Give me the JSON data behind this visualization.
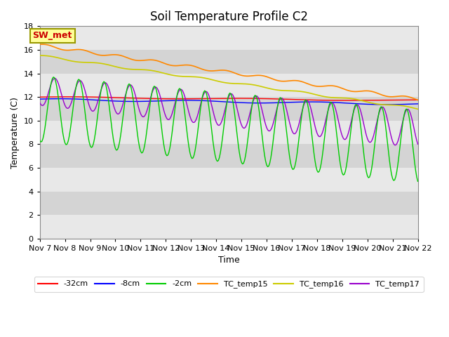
{
  "title": "Soil Temperature Profile C2",
  "xlabel": "Time",
  "ylabel": "Temperature (C)",
  "ylim": [
    0,
    18
  ],
  "n_days": 15,
  "x_tick_labels": [
    "Nov 7",
    "Nov 8",
    "Nov 9",
    "Nov 10",
    "Nov 11",
    "Nov 12",
    "Nov 13",
    "Nov 14",
    "Nov 15",
    "Nov 16",
    "Nov 17",
    "Nov 18",
    "Nov 19",
    "Nov 20",
    "Nov 21",
    "Nov 22"
  ],
  "series": {
    "neg32cm": {
      "color": "#ff0000",
      "label": "-32cm",
      "lw": 1.0
    },
    "neg8cm": {
      "color": "#0000ff",
      "label": "-8cm",
      "lw": 1.0
    },
    "neg2cm": {
      "color": "#00cc00",
      "label": "-2cm",
      "lw": 1.0
    },
    "TC_temp15": {
      "color": "#ff8800",
      "label": "TC_temp15",
      "lw": 1.2
    },
    "TC_temp16": {
      "color": "#cccc00",
      "label": "TC_temp16",
      "lw": 1.2
    },
    "TC_temp17": {
      "color": "#9900cc",
      "label": "TC_temp17",
      "lw": 1.0
    }
  },
  "sw_met_label": "SW_met",
  "sw_met_facecolor": "#ffff99",
  "sw_met_edgecolor": "#999900",
  "sw_met_textcolor": "#cc0000",
  "band_colors": [
    "#e8e8e8",
    "#d4d4d4"
  ],
  "title_fontsize": 12,
  "axis_label_fontsize": 9,
  "tick_label_fontsize": 8,
  "legend_fontsize": 8
}
